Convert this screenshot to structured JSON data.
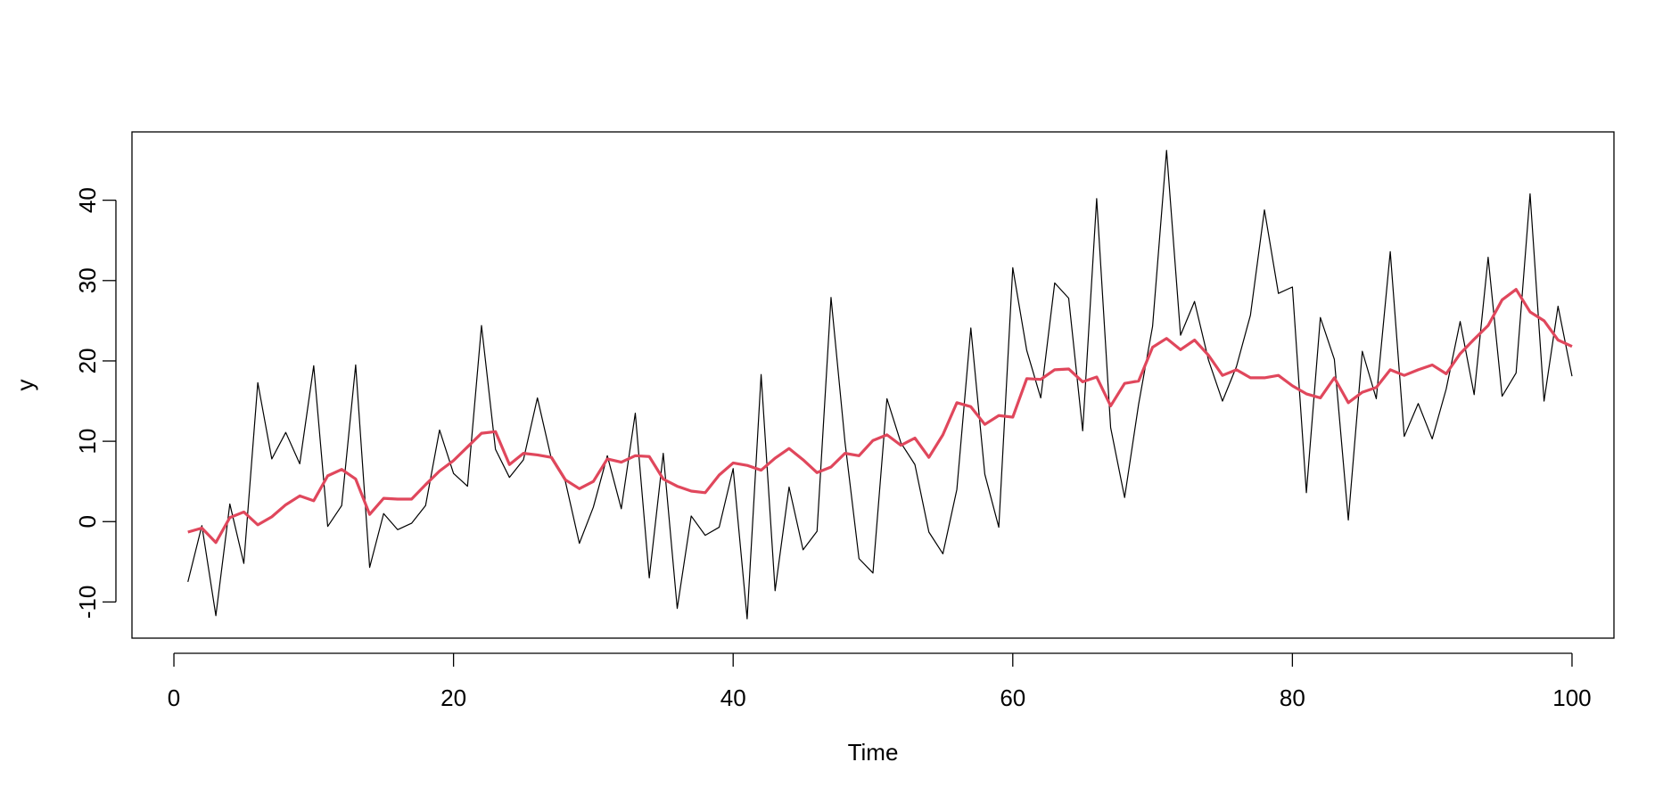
{
  "chart_data": {
    "type": "line",
    "title": "",
    "xlabel": "Time",
    "ylabel": "y",
    "xlim": [
      -3,
      103
    ],
    "ylim": [
      -14.5,
      48.5
    ],
    "xticks": [
      0,
      20,
      40,
      60,
      80,
      100
    ],
    "yticks": [
      -10,
      0,
      10,
      20,
      30,
      40
    ],
    "grid": false,
    "legend": "none",
    "x": [
      1,
      2,
      3,
      4,
      5,
      6,
      7,
      8,
      9,
      10,
      11,
      12,
      13,
      14,
      15,
      16,
      17,
      18,
      19,
      20,
      21,
      22,
      23,
      24,
      25,
      26,
      27,
      28,
      29,
      30,
      31,
      32,
      33,
      34,
      35,
      36,
      37,
      38,
      39,
      40,
      41,
      42,
      43,
      44,
      45,
      46,
      47,
      48,
      49,
      50,
      51,
      52,
      53,
      54,
      55,
      56,
      57,
      58,
      59,
      60,
      61,
      62,
      63,
      64,
      65,
      66,
      67,
      68,
      69,
      70,
      71,
      72,
      73,
      74,
      75,
      76,
      77,
      78,
      79,
      80,
      81,
      82,
      83,
      84,
      85,
      86,
      87,
      88,
      89,
      90,
      91,
      92,
      93,
      94,
      95,
      96,
      97,
      98,
      99,
      100
    ],
    "series": [
      {
        "color": "#000000",
        "values": [
          -7.5,
          -0.5,
          -11.7,
          2.2,
          -5.2,
          17.3,
          7.8,
          11.1,
          7.2,
          19.4,
          -0.6,
          2,
          19.5,
          -5.7,
          1,
          -1,
          -0.2,
          2,
          11.4,
          6,
          4.4,
          24.4,
          9,
          5.5,
          7.7,
          15.4,
          7.8,
          5,
          -2.7,
          1.8,
          8.2,
          1.6,
          13.5,
          -7,
          8.5,
          -10.8,
          0.7,
          -1.7,
          -0.7,
          6.6,
          -12.1,
          18.3,
          -8.6,
          4.3,
          -3.5,
          -1.2,
          27.9,
          9.9,
          -4.6,
          -6.4,
          15.3,
          9.8,
          7.1,
          -1.3,
          -4,
          4,
          24.1,
          5.9,
          -0.7,
          31.6,
          21.3,
          15.4,
          29.7,
          27.8,
          11.3,
          40.2,
          11.7,
          3,
          14.6,
          24.3,
          46.2,
          23.2,
          27.4,
          20.1,
          15,
          19.3,
          25.7,
          38.8,
          28.4,
          29.2,
          3.6,
          25.4,
          20.2,
          0.2,
          21.2,
          15.3,
          33.6,
          10.6,
          14.7,
          10.3,
          16.5,
          24.9,
          15.8,
          32.9,
          15.6,
          18.5,
          40.8,
          15,
          26.8,
          18.1
        ]
      },
      {
        "color": "#e0475c",
        "values": [
          -1.3,
          -0.8,
          -2.6,
          0.5,
          1.2,
          -0.4,
          0.6,
          2.1,
          3.2,
          2.6,
          5.7,
          6.5,
          5.3,
          0.9,
          2.9,
          2.8,
          2.8,
          4.6,
          6.3,
          7.6,
          9.3,
          11,
          11.2,
          7.1,
          8.5,
          8.3,
          8,
          5.2,
          4.1,
          5,
          7.8,
          7.4,
          8.2,
          8.1,
          5.3,
          4.4,
          3.8,
          3.6,
          5.8,
          7.3,
          7,
          6.4,
          7.9,
          9.1,
          7.7,
          6.1,
          6.8,
          8.5,
          8.2,
          10.1,
          10.8,
          9.5,
          10.4,
          8,
          10.8,
          14.8,
          14.3,
          12.1,
          13.2,
          13,
          17.8,
          17.7,
          18.9,
          19,
          17.4,
          18,
          14.4,
          17.2,
          17.5,
          21.7,
          22.8,
          21.4,
          22.6,
          20.7,
          18.2,
          18.9,
          17.9,
          17.9,
          18.2,
          16.9,
          15.9,
          15.4,
          17.9,
          14.8,
          16.1,
          16.7,
          18.9,
          18.2,
          18.9,
          19.5,
          18.4,
          20.9,
          22.7,
          24.4,
          27.6,
          28.9,
          26.1,
          25,
          22.6,
          21.8
        ]
      }
    ]
  }
}
